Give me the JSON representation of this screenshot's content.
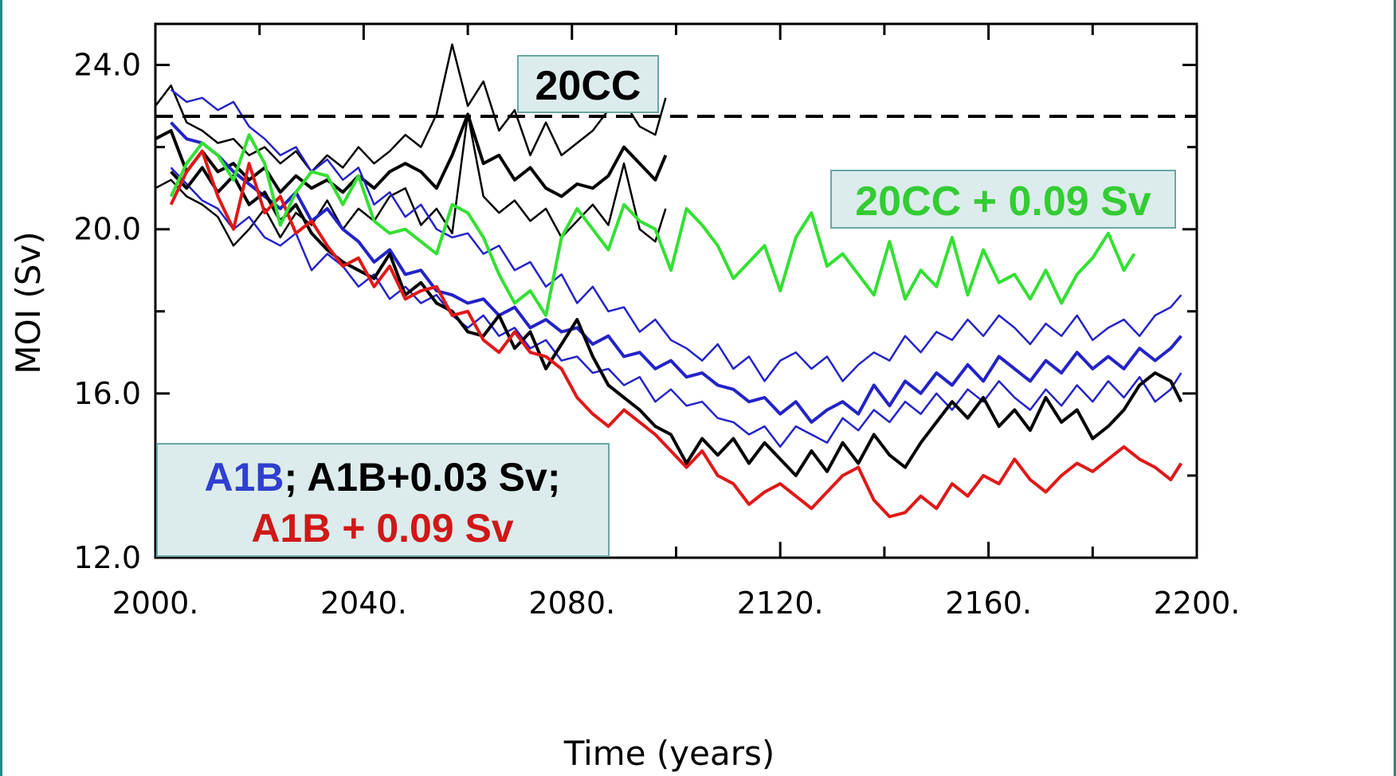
{
  "chart_data": {
    "type": "line",
    "title": "",
    "xlabel": "Time (years)",
    "ylabel": "MOI (Sv)",
    "xlim": [
      2000,
      2200
    ],
    "ylim": [
      12.0,
      25.0
    ],
    "xticks": [
      2000,
      2040,
      2080,
      2120,
      2160,
      2200
    ],
    "xtick_labels": [
      "2000.",
      "2040.",
      "2080.",
      "2120.",
      "2160.",
      "2200."
    ],
    "yticks": [
      12.0,
      16.0,
      20.0,
      24.0
    ],
    "ytick_labels": [
      "12.0",
      "16.0",
      "20.0",
      "24.0"
    ],
    "grid": false,
    "reference_line": {
      "y": 22.75,
      "style": "dashed",
      "color": "#000000"
    },
    "annotations": {
      "box_20cc": "20CC",
      "box_20cc_green": "20CC + 0.09 Sv",
      "box_a1b_part1": "A1B",
      "box_a1b_part2": "; A1B+0.03 Sv;",
      "box_a1b_line2": "A1B + 0.09 Sv"
    },
    "colors": {
      "blue": "#2323c8",
      "black": "#000000",
      "red": "#e01818",
      "green": "#33e033",
      "box_bg": "#dcecec",
      "box_border": "#6aa6a6"
    },
    "series": [
      {
        "color": "#000000",
        "width": 2.5,
        "x": [
          2000,
          2003,
          2006,
          2009,
          2012,
          2015,
          2018,
          2021,
          2024,
          2027,
          2030,
          2033,
          2036,
          2039,
          2042,
          2045,
          2048,
          2051,
          2054,
          2057,
          2060,
          2063,
          2066,
          2069,
          2072,
          2075,
          2078,
          2081,
          2084,
          2087,
          2090,
          2093,
          2096,
          2098
        ],
        "y": [
          23.0,
          23.5,
          22.6,
          22.4,
          22.1,
          22.2,
          21.8,
          22.0,
          21.6,
          21.9,
          21.4,
          21.8,
          21.5,
          22.0,
          21.6,
          21.9,
          22.3,
          22.0,
          22.8,
          24.5,
          23.0,
          23.6,
          22.4,
          22.9,
          21.8,
          22.6,
          21.8,
          22.1,
          22.4,
          22.9,
          23.1,
          22.5,
          22.3,
          23.2
        ]
      },
      {
        "color": "#000000",
        "width": 4,
        "x": [
          2000,
          2003,
          2006,
          2009,
          2012,
          2015,
          2018,
          2021,
          2024,
          2027,
          2030,
          2033,
          2036,
          2039,
          2042,
          2045,
          2048,
          2051,
          2054,
          2057,
          2060,
          2063,
          2066,
          2069,
          2072,
          2075,
          2078,
          2081,
          2084,
          2087,
          2090,
          2093,
          2096,
          2098
        ],
        "y": [
          22.2,
          22.4,
          21.4,
          21.9,
          21.4,
          21.6,
          21.2,
          21.5,
          20.9,
          21.3,
          21.0,
          21.2,
          20.9,
          21.3,
          21.0,
          21.4,
          21.6,
          21.4,
          21.0,
          21.8,
          22.8,
          21.6,
          21.8,
          21.2,
          21.5,
          21.0,
          20.8,
          21.1,
          21.0,
          21.3,
          22.0,
          21.6,
          21.2,
          21.8
        ]
      },
      {
        "color": "#000000",
        "width": 2.5,
        "x": [
          2000,
          2003,
          2006,
          2009,
          2012,
          2015,
          2018,
          2021,
          2024,
          2027,
          2030,
          2033,
          2036,
          2039,
          2042,
          2045,
          2048,
          2051,
          2054,
          2057,
          2060,
          2063,
          2066,
          2069,
          2072,
          2075,
          2078,
          2081,
          2084,
          2087,
          2090,
          2093,
          2096,
          2098
        ],
        "y": [
          21.0,
          21.2,
          20.8,
          20.6,
          20.3,
          19.6,
          20.0,
          20.5,
          19.8,
          20.4,
          20.1,
          20.7,
          20.0,
          20.5,
          20.2,
          20.8,
          21.0,
          20.1,
          20.5,
          19.9,
          22.8,
          20.8,
          20.4,
          20.7,
          20.2,
          20.5,
          19.8,
          20.2,
          20.6,
          20.1,
          21.6,
          20.0,
          19.7,
          20.5
        ]
      },
      {
        "color": "#2323c8",
        "width": 2.5,
        "x": [
          2003,
          2006,
          2009,
          2012,
          2015,
          2018,
          2021,
          2024,
          2027,
          2030,
          2033,
          2036,
          2039,
          2042,
          2045,
          2048,
          2051,
          2054,
          2057,
          2060,
          2063,
          2066,
          2069,
          2072,
          2075,
          2078,
          2081,
          2084,
          2087,
          2090,
          2093,
          2096,
          2099,
          2102,
          2105,
          2108,
          2111,
          2114,
          2117,
          2120,
          2123,
          2126,
          2129,
          2132,
          2135,
          2138,
          2141,
          2144,
          2147,
          2150,
          2153,
          2156,
          2159,
          2162,
          2165,
          2168,
          2171,
          2174,
          2177,
          2180,
          2183,
          2186,
          2189,
          2192,
          2195,
          2197
        ],
        "y": [
          23.4,
          23.1,
          23.2,
          22.9,
          23.1,
          22.5,
          22.2,
          21.8,
          22.0,
          21.4,
          21.7,
          21.2,
          21.5,
          20.6,
          20.9,
          20.3,
          20.6,
          20.0,
          19.8,
          19.9,
          19.4,
          19.6,
          19.0,
          19.2,
          18.6,
          18.9,
          18.2,
          18.6,
          18.0,
          18.1,
          17.5,
          17.8,
          17.3,
          17.1,
          16.8,
          17.2,
          16.6,
          16.9,
          16.3,
          16.8,
          17.0,
          16.6,
          16.9,
          16.3,
          16.7,
          17.0,
          16.8,
          17.4,
          17.0,
          17.5,
          17.3,
          17.8,
          17.4,
          17.9,
          17.6,
          17.2,
          17.7,
          17.4,
          17.9,
          17.3,
          17.6,
          17.8,
          17.4,
          17.9,
          18.1,
          18.4
        ]
      },
      {
        "color": "#2323c8",
        "width": 4,
        "x": [
          2003,
          2006,
          2009,
          2012,
          2015,
          2018,
          2021,
          2024,
          2027,
          2030,
          2033,
          2036,
          2039,
          2042,
          2045,
          2048,
          2051,
          2054,
          2057,
          2060,
          2063,
          2066,
          2069,
          2072,
          2075,
          2078,
          2081,
          2084,
          2087,
          2090,
          2093,
          2096,
          2099,
          2102,
          2105,
          2108,
          2111,
          2114,
          2117,
          2120,
          2123,
          2126,
          2129,
          2132,
          2135,
          2138,
          2141,
          2144,
          2147,
          2150,
          2153,
          2156,
          2159,
          2162,
          2165,
          2168,
          2171,
          2174,
          2177,
          2180,
          2183,
          2186,
          2189,
          2192,
          2195,
          2197
        ],
        "y": [
          22.6,
          22.2,
          22.1,
          21.8,
          21.4,
          21.1,
          20.8,
          20.5,
          20.9,
          20.2,
          20.5,
          20.0,
          19.7,
          19.2,
          19.5,
          18.9,
          19.0,
          18.5,
          18.4,
          18.2,
          18.3,
          17.9,
          18.1,
          17.6,
          17.8,
          17.5,
          17.6,
          17.2,
          17.4,
          16.9,
          17.0,
          16.6,
          16.8,
          16.4,
          16.5,
          16.2,
          16.1,
          15.8,
          15.9,
          15.5,
          15.8,
          15.3,
          15.6,
          15.8,
          15.5,
          16.2,
          15.7,
          16.3,
          16.0,
          16.5,
          16.2,
          16.7,
          16.3,
          16.9,
          16.6,
          16.3,
          16.8,
          16.5,
          17.0,
          16.6,
          16.9,
          16.6,
          17.1,
          16.8,
          17.1,
          17.4
        ]
      },
      {
        "color": "#2323c8",
        "width": 2.5,
        "x": [
          2003,
          2006,
          2009,
          2012,
          2015,
          2018,
          2021,
          2024,
          2027,
          2030,
          2033,
          2036,
          2039,
          2042,
          2045,
          2048,
          2051,
          2054,
          2057,
          2060,
          2063,
          2066,
          2069,
          2072,
          2075,
          2078,
          2081,
          2084,
          2087,
          2090,
          2093,
          2096,
          2099,
          2102,
          2105,
          2108,
          2111,
          2114,
          2117,
          2120,
          2123,
          2126,
          2129,
          2132,
          2135,
          2138,
          2141,
          2144,
          2147,
          2150,
          2153,
          2156,
          2159,
          2162,
          2165,
          2168,
          2171,
          2174,
          2177,
          2180,
          2183,
          2186,
          2189,
          2192,
          2195,
          2197
        ],
        "y": [
          21.5,
          21.1,
          20.7,
          20.5,
          20.0,
          20.3,
          19.8,
          19.6,
          19.9,
          19.0,
          19.4,
          19.1,
          18.6,
          18.9,
          18.3,
          18.6,
          18.2,
          18.4,
          17.9,
          17.6,
          17.9,
          17.4,
          17.6,
          17.1,
          17.3,
          16.8,
          16.9,
          16.5,
          16.6,
          16.2,
          16.4,
          15.8,
          16.1,
          15.7,
          15.8,
          15.4,
          15.3,
          15.0,
          15.2,
          14.7,
          15.2,
          15.0,
          14.8,
          15.4,
          15.1,
          15.6,
          15.3,
          15.8,
          15.5,
          16.0,
          15.6,
          16.1,
          15.8,
          16.3,
          15.9,
          15.6,
          16.1,
          15.7,
          16.2,
          15.8,
          16.3,
          15.9,
          16.4,
          15.8,
          16.1,
          16.5
        ]
      },
      {
        "color": "#000000",
        "width": 4,
        "x": [
          2003,
          2006,
          2009,
          2012,
          2015,
          2018,
          2021,
          2024,
          2027,
          2030,
          2033,
          2036,
          2039,
          2042,
          2045,
          2048,
          2051,
          2054,
          2057,
          2060,
          2063,
          2066,
          2069,
          2072,
          2075,
          2078,
          2081,
          2084,
          2087,
          2090,
          2093,
          2096,
          2099,
          2102,
          2105,
          2108,
          2111,
          2114,
          2117,
          2120,
          2123,
          2126,
          2129,
          2132,
          2135,
          2138,
          2141,
          2144,
          2147,
          2150,
          2153,
          2156,
          2159,
          2162,
          2165,
          2168,
          2171,
          2174,
          2177,
          2180,
          2183,
          2186,
          2189,
          2192,
          2195,
          2197
        ],
        "y": [
          21.4,
          21.0,
          21.5,
          20.9,
          21.3,
          20.6,
          20.9,
          20.2,
          20.6,
          19.9,
          19.5,
          19.2,
          19.0,
          18.8,
          19.4,
          18.4,
          18.7,
          18.2,
          18.0,
          17.5,
          17.4,
          17.9,
          17.1,
          17.5,
          16.6,
          17.2,
          17.8,
          16.9,
          16.2,
          15.9,
          15.6,
          15.2,
          15.0,
          14.3,
          14.9,
          14.5,
          14.9,
          14.3,
          14.8,
          14.4,
          14.0,
          14.6,
          14.1,
          14.8,
          14.3,
          15.0,
          14.5,
          14.2,
          14.8,
          15.3,
          15.8,
          15.4,
          15.9,
          15.2,
          15.6,
          15.1,
          15.9,
          15.3,
          15.6,
          14.9,
          15.2,
          15.6,
          16.2,
          16.5,
          16.3,
          15.8
        ]
      },
      {
        "color": "#e01818",
        "width": 4,
        "x": [
          2003,
          2006,
          2009,
          2012,
          2015,
          2018,
          2021,
          2024,
          2027,
          2030,
          2033,
          2036,
          2039,
          2042,
          2045,
          2048,
          2051,
          2054,
          2057,
          2060,
          2063,
          2066,
          2069,
          2072,
          2075,
          2078,
          2081,
          2084,
          2087,
          2090,
          2093,
          2096,
          2099,
          2102,
          2105,
          2108,
          2111,
          2114,
          2117,
          2120,
          2123,
          2126,
          2129,
          2132,
          2135,
          2138,
          2141,
          2144,
          2147,
          2150,
          2153,
          2156,
          2159,
          2162,
          2165,
          2168,
          2171,
          2174,
          2177,
          2180,
          2183,
          2186,
          2189,
          2192,
          2195,
          2197
        ],
        "y": [
          20.6,
          21.4,
          21.9,
          20.8,
          20.0,
          21.6,
          20.4,
          20.8,
          19.9,
          20.2,
          19.6,
          19.1,
          19.3,
          18.6,
          19.1,
          18.3,
          18.5,
          18.6,
          17.9,
          18.0,
          17.3,
          17.0,
          17.5,
          17.0,
          16.9,
          16.6,
          15.9,
          15.5,
          15.2,
          15.6,
          15.3,
          15.0,
          14.6,
          14.2,
          14.6,
          14.0,
          13.8,
          13.3,
          13.6,
          13.8,
          13.5,
          13.2,
          13.6,
          14.0,
          14.2,
          13.4,
          13.0,
          13.1,
          13.5,
          13.2,
          13.8,
          13.5,
          14.0,
          13.8,
          14.4,
          13.9,
          13.6,
          14.0,
          14.3,
          14.1,
          14.4,
          14.7,
          14.4,
          14.2,
          13.9,
          14.3
        ]
      },
      {
        "color": "#33e033",
        "width": 4,
        "x": [
          2003,
          2006,
          2009,
          2012,
          2015,
          2018,
          2021,
          2024,
          2027,
          2030,
          2033,
          2036,
          2039,
          2042,
          2045,
          2048,
          2051,
          2054,
          2057,
          2060,
          2063,
          2066,
          2069,
          2072,
          2075,
          2078,
          2081,
          2084,
          2087,
          2090,
          2093,
          2096,
          2099,
          2102,
          2105,
          2108,
          2111,
          2114,
          2117,
          2120,
          2123,
          2126,
          2129,
          2132,
          2135,
          2138,
          2141,
          2144,
          2147,
          2150,
          2153,
          2156,
          2159,
          2162,
          2165,
          2168,
          2171,
          2174,
          2177,
          2180,
          2183,
          2186,
          2188
        ],
        "y": [
          20.8,
          21.6,
          22.1,
          21.8,
          21.2,
          22.3,
          21.6,
          20.1,
          20.9,
          21.4,
          21.3,
          20.6,
          21.3,
          20.2,
          19.9,
          20.0,
          19.7,
          19.4,
          20.6,
          20.4,
          19.8,
          18.9,
          18.2,
          18.5,
          17.9,
          19.8,
          20.5,
          20.0,
          19.5,
          20.6,
          20.2,
          20.0,
          19.0,
          20.5,
          20.1,
          19.6,
          18.8,
          19.2,
          19.6,
          18.5,
          19.8,
          20.4,
          19.1,
          19.4,
          18.9,
          18.4,
          19.7,
          18.3,
          19.0,
          18.6,
          19.8,
          18.4,
          19.5,
          18.7,
          18.9,
          18.3,
          19.0,
          18.2,
          18.9,
          19.3,
          19.9,
          19.0,
          19.4
        ]
      }
    ]
  }
}
